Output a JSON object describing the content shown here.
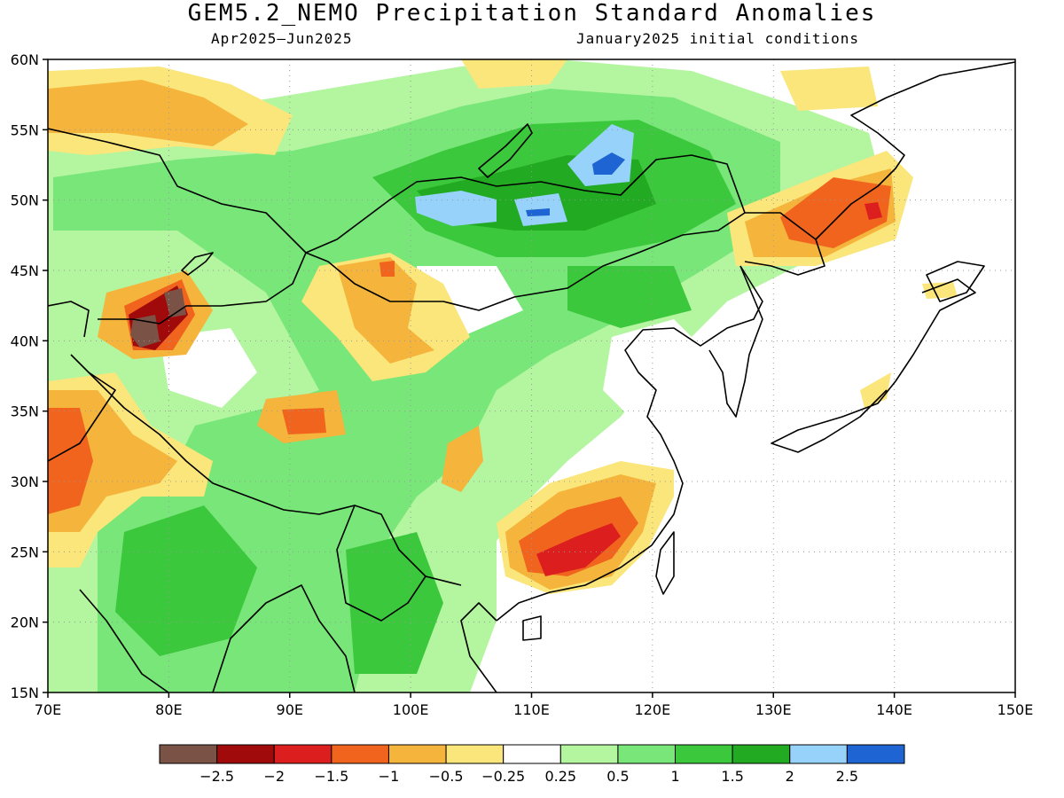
{
  "title": "GEM5.2_NEMO Precipitation Standard Anomalies",
  "subtitle_left": "Apr2025–Jun2025",
  "subtitle_right": "January2025 initial conditions",
  "map": {
    "projection": "lat-lon",
    "lon_range": [
      70,
      150
    ],
    "lat_range": [
      15,
      60
    ],
    "lon_ticks": [
      "70E",
      "80E",
      "90E",
      "100E",
      "110E",
      "120E",
      "130E",
      "140E",
      "150E"
    ],
    "lat_ticks": [
      "60N",
      "55N",
      "50N",
      "45N",
      "40N",
      "35N",
      "30N",
      "25N",
      "20N",
      "15N"
    ],
    "grid": "dotted"
  },
  "colorbar": {
    "colors": [
      "#7a5246",
      "#a00a0a",
      "#dc1e1e",
      "#f0641e",
      "#f5b43c",
      "#fae67a",
      "#ffffff",
      "#b4f5a0",
      "#78e678",
      "#3cc83c",
      "#22aa22",
      "#96d2fa",
      "#1e64d2"
    ],
    "labels": [
      "−2.5",
      "−2",
      "−1.5",
      "−1",
      "−0.5",
      "−0.25",
      "0.25",
      "0.5",
      "1",
      "1.5",
      "2",
      "2.5"
    ]
  },
  "legend": [
    {
      "label": "−2.5",
      "color": "#7a5246"
    },
    {
      "label": "−2",
      "color": "#a00a0a"
    },
    {
      "label": "−1.5",
      "color": "#dc1e1e"
    },
    {
      "label": "−1",
      "color": "#f0641e"
    },
    {
      "label": "−0.5",
      "color": "#f5b43c"
    },
    {
      "label": "−0.25",
      "color": "#fae67a"
    },
    {
      "label": "0.25",
      "color": "#ffffff"
    },
    {
      "label": "0.5",
      "color": "#b4f5a0"
    },
    {
      "label": "1",
      "color": "#78e678"
    },
    {
      "label": "1.5",
      "color": "#3cc83c"
    },
    {
      "label": "2",
      "color": "#22aa22"
    },
    {
      "label": "2.5",
      "color": "#96d2fa"
    }
  ]
}
